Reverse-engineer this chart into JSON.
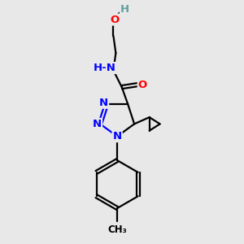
{
  "bg_color": "#e8e8e8",
  "atom_colors": {
    "C": "#000000",
    "N": "#0000ff",
    "O": "#ff0000",
    "H": "#5f9ea0"
  },
  "bond_color": "#000000",
  "bond_width": 1.6,
  "font_size_atoms": 9.5
}
